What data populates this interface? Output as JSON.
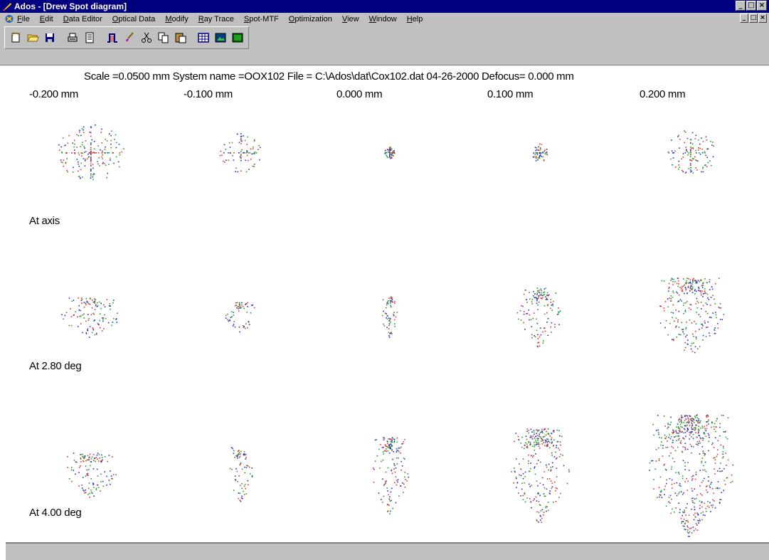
{
  "window": {
    "title": "Ados - [Drew Spot diagram]",
    "controls": [
      "_",
      "□",
      "×"
    ]
  },
  "menu": [
    "File",
    "Edit",
    "Data Editor",
    "Optical Data",
    "Modify",
    "Ray Trace",
    "Spot-MTF",
    "Optimization",
    "View",
    "Window",
    "Help"
  ],
  "toolbar": {
    "buttons": [
      "new-icon",
      "open-icon",
      "save-icon",
      "print-icon",
      "print-preview-icon",
      "profile-icon",
      "brush-icon",
      "cut-icon",
      "copy-icon",
      "paste-icon",
      "grid-icon",
      "image-icon",
      "chart-icon"
    ]
  },
  "diagram": {
    "header": "Scale =0.0500 mm  System name =OOX102  File = C:\\Ados\\dat\\Cox102.dat  04-26-2000  Defocus=  0.000 mm",
    "focus_labels": [
      "-0.200 mm",
      "-0.100 mm",
      "0.000 mm",
      "0.100 mm",
      "0.200 mm"
    ],
    "field_labels": [
      "At axis",
      "At 2.80 deg",
      "At 4.00 deg"
    ]
  },
  "colors": {
    "titlebar": "#000080",
    "chrome": "#c0c0c0",
    "ray_red": "#e03030",
    "ray_green": "#20a020",
    "ray_blue": "#2030d0"
  }
}
